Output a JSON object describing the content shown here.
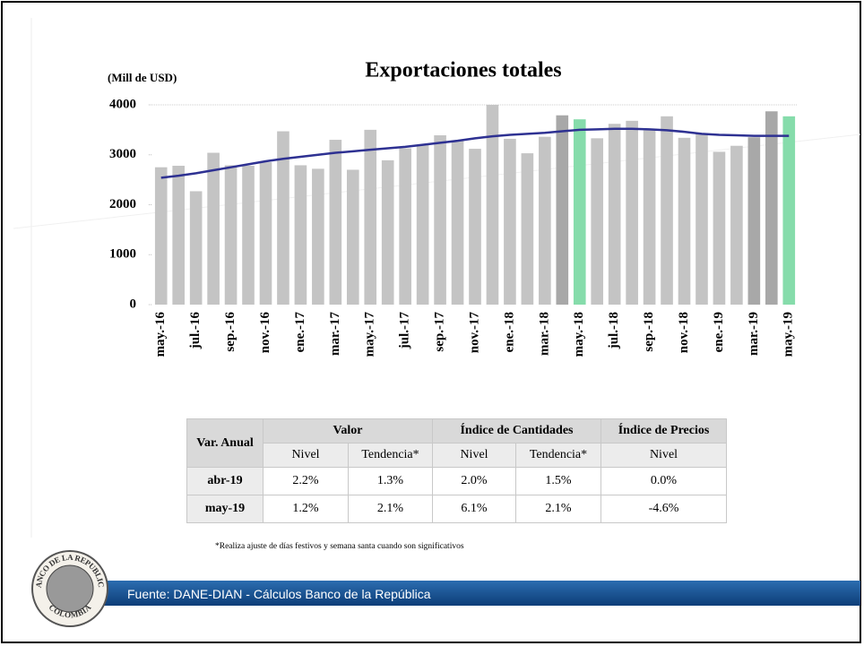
{
  "chart_data": {
    "type": "bar",
    "title": "Exportaciones totales",
    "y_label": "(Mill de USD)",
    "categories": [
      "may.-16",
      null,
      "jul.-16",
      null,
      "sep.-16",
      null,
      "nov.-16",
      null,
      "ene.-17",
      null,
      "mar.-17",
      null,
      "may.-17",
      null,
      "jul.-17",
      null,
      "sep.-17",
      null,
      "nov.-17",
      null,
      "ene.-18",
      null,
      "mar.-18",
      null,
      "may.-18",
      null,
      "jul.-18",
      null,
      "sep.-18",
      null,
      "nov.-18",
      null,
      "ene.-19",
      null,
      "mar.-19",
      null,
      "may.-19"
    ],
    "series": [
      {
        "type": "bar",
        "values": [
          2750,
          2780,
          2270,
          3040,
          2790,
          2780,
          2850,
          3470,
          2790,
          2720,
          3300,
          2700,
          3500,
          2890,
          3130,
          3200,
          3390,
          3290,
          3120,
          4000,
          3320,
          3030,
          3360,
          3790,
          3710,
          3330,
          3620,
          3680,
          3490,
          3770,
          3340,
          3420,
          3060,
          3180,
          3350,
          3870,
          3770
        ],
        "colors": [
          "#c4c4c4",
          "#c4c4c4",
          "#c4c4c4",
          "#c4c4c4",
          "#c4c4c4",
          "#c4c4c4",
          "#c4c4c4",
          "#c4c4c4",
          "#c4c4c4",
          "#c4c4c4",
          "#c4c4c4",
          "#c4c4c4",
          "#c4c4c4",
          "#c4c4c4",
          "#c4c4c4",
          "#c4c4c4",
          "#c4c4c4",
          "#c4c4c4",
          "#c4c4c4",
          "#c4c4c4",
          "#c4c4c4",
          "#c4c4c4",
          "#c4c4c4",
          "#a8a8a8",
          "#86dcab",
          "#c4c4c4",
          "#c4c4c4",
          "#c4c4c4",
          "#c4c4c4",
          "#c4c4c4",
          "#c4c4c4",
          "#c4c4c4",
          "#c4c4c4",
          "#c4c4c4",
          "#a8a8a8",
          "#a8a8a8",
          "#86dcab"
        ]
      },
      {
        "type": "line",
        "color": "#2e3192",
        "values": [
          2540,
          2580,
          2630,
          2690,
          2750,
          2810,
          2870,
          2920,
          2960,
          3000,
          3040,
          3070,
          3100,
          3130,
          3160,
          3200,
          3240,
          3280,
          3330,
          3370,
          3400,
          3420,
          3440,
          3470,
          3500,
          3510,
          3520,
          3520,
          3510,
          3490,
          3460,
          3420,
          3400,
          3390,
          3380,
          3380,
          3380
        ]
      }
    ],
    "ylim": [
      0,
      4000
    ],
    "yticks": [
      0,
      1000,
      2000,
      3000,
      4000
    ],
    "grid": false
  },
  "table": {
    "header": [
      [
        "Var. Anual",
        "Valor",
        "Índice de Cantidades",
        "Índice de Precios"
      ],
      [
        "Nivel",
        "Tendencia*",
        "Nivel",
        "Tendencia*",
        "Nivel"
      ]
    ],
    "rows": [
      [
        "abr-19",
        "2.2%",
        "1.3%",
        "2.0%",
        "1.5%",
        "0.0%"
      ],
      [
        "may-19",
        "1.2%",
        "2.1%",
        "6.1%",
        "2.1%",
        "-4.6%"
      ]
    ]
  },
  "footnote": "*Realiza ajuste de días festivos y semana santa cuando son significativos",
  "source": "Fuente: DANE-DIAN - Cálculos Banco de la República",
  "logo": {
    "top": "BANCO DE LA REPUBLICA",
    "bottom": "COLOMBIA"
  }
}
